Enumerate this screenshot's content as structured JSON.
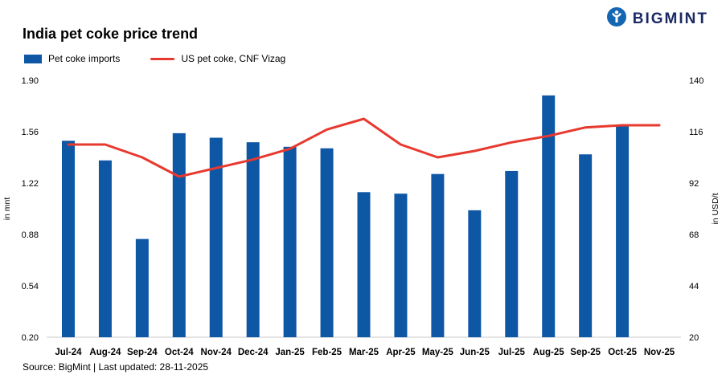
{
  "header": {
    "title": "India pet coke price trend",
    "brand": "BIGMINT",
    "brand_color": "#1b2a63",
    "logo_icon_color": "#1466b2"
  },
  "legend": {
    "bar_label": "Pet coke imports",
    "line_label": "US pet coke, CNF Vizag"
  },
  "footer": {
    "source": "Source: BigMint | Last updated: 28-11-2025"
  },
  "chart_data": {
    "type": "bar",
    "subtype": "bar+line combo",
    "title": "India pet coke price trend",
    "categories": [
      "Jul-24",
      "Aug-24",
      "Sep-24",
      "Oct-24",
      "Nov-24",
      "Dec-24",
      "Jan-25",
      "Feb-25",
      "Mar-25",
      "Apr-25",
      "May-25",
      "Jun-25",
      "Jul-25",
      "Aug-25",
      "Sep-25",
      "Oct-25",
      "Nov-25"
    ],
    "series": [
      {
        "name": "Pet coke imports",
        "type": "bar",
        "axis": "left",
        "unit": "mnt",
        "color": "#0e57a5",
        "values": [
          1.5,
          1.37,
          0.85,
          1.55,
          1.52,
          1.49,
          1.46,
          1.45,
          1.16,
          1.15,
          1.28,
          1.04,
          1.3,
          1.8,
          1.41,
          1.6,
          null
        ]
      },
      {
        "name": "US pet coke, CNF Vizag",
        "type": "line",
        "axis": "right",
        "unit": "USD/t",
        "color": "#e8392f",
        "values": [
          110,
          110,
          104,
          95,
          99,
          103,
          108,
          117,
          122,
          110,
          104,
          107,
          111,
          114,
          118,
          119,
          119
        ]
      }
    ],
    "left_axis": {
      "label": "in mnt",
      "min": 0.2,
      "max": 1.9,
      "ticks": [
        0.2,
        0.54,
        0.88,
        1.22,
        1.56,
        1.9
      ],
      "decimals": 2
    },
    "right_axis": {
      "label": "in USD/t",
      "min": 20,
      "max": 140,
      "ticks": [
        20,
        44,
        68,
        92,
        116,
        140
      ],
      "decimals": 0
    },
    "grid": false,
    "legend_position": "top-left"
  }
}
